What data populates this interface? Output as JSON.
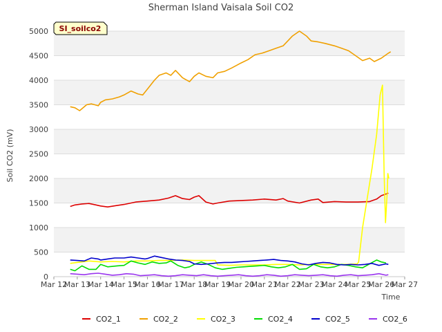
{
  "chart_data": {
    "type": "line",
    "title": "Sherman Island Vaisala Soil CO2",
    "xlabel": "Time",
    "ylabel": "Soil CO2 (mV)",
    "badge": "SI_soilco2",
    "ylim": [
      0,
      5000
    ],
    "yticks": [
      0,
      500,
      1000,
      1500,
      2000,
      2500,
      3000,
      3500,
      4000,
      4500,
      5000
    ],
    "xlim": [
      12,
      27
    ],
    "xticks": [
      {
        "value": 12,
        "label": "Mar 12"
      },
      {
        "value": 13,
        "label": "Mar 13"
      },
      {
        "value": 14,
        "label": "Mar 14"
      },
      {
        "value": 15,
        "label": "Mar 15"
      },
      {
        "value": 16,
        "label": "Mar 16"
      },
      {
        "value": 17,
        "label": "Mar 17"
      },
      {
        "value": 18,
        "label": "Mar 18"
      },
      {
        "value": 19,
        "label": "Mar 19"
      },
      {
        "value": 20,
        "label": "Mar 20"
      },
      {
        "value": 21,
        "label": "Mar 21"
      },
      {
        "value": 22,
        "label": "Mar 22"
      },
      {
        "value": 23,
        "label": "Mar 23"
      },
      {
        "value": 24,
        "label": "Mar 24"
      },
      {
        "value": 25,
        "label": "Mar 25"
      },
      {
        "value": 26,
        "label": "Mar 26"
      },
      {
        "value": 27,
        "label": "Mar 27"
      }
    ],
    "series": [
      {
        "name": "CO2_1",
        "color": "#dd0000",
        "x": [
          12.7,
          12.9,
          13.2,
          13.5,
          13.8,
          14.0,
          14.3,
          14.7,
          15.0,
          15.5,
          16.0,
          16.5,
          16.9,
          17.2,
          17.5,
          17.8,
          18.0,
          18.2,
          18.5,
          18.8,
          19.0,
          19.5,
          20.0,
          20.5,
          21.0,
          21.5,
          21.8,
          22.0,
          22.5,
          23.0,
          23.3,
          23.5,
          24.0,
          24.5,
          25.0,
          25.5,
          25.8,
          26.0,
          26.3
        ],
        "y": [
          1430,
          1460,
          1480,
          1490,
          1460,
          1440,
          1420,
          1450,
          1470,
          1520,
          1540,
          1560,
          1600,
          1650,
          1590,
          1570,
          1620,
          1650,
          1520,
          1480,
          1500,
          1540,
          1550,
          1560,
          1580,
          1560,
          1590,
          1540,
          1500,
          1560,
          1580,
          1510,
          1530,
          1520,
          1520,
          1530,
          1580,
          1650,
          1700
        ]
      },
      {
        "name": "CO2_2",
        "color": "#f0a000",
        "x": [
          12.7,
          12.9,
          13.1,
          13.4,
          13.6,
          13.9,
          14.0,
          14.2,
          14.5,
          14.8,
          15.0,
          15.3,
          15.6,
          15.8,
          16.0,
          16.3,
          16.5,
          16.8,
          17.0,
          17.2,
          17.5,
          17.8,
          18.0,
          18.2,
          18.5,
          18.8,
          19.0,
          19.3,
          19.6,
          19.8,
          20.0,
          20.3,
          20.6,
          20.9,
          21.2,
          21.5,
          21.8,
          22.0,
          22.2,
          22.5,
          22.8,
          23.0,
          23.3,
          23.6,
          24.0,
          24.3,
          24.6,
          24.9,
          25.2,
          25.5,
          25.7,
          26.0,
          26.3,
          26.4
        ],
        "y": [
          3460,
          3440,
          3380,
          3500,
          3520,
          3480,
          3550,
          3600,
          3620,
          3660,
          3700,
          3780,
          3720,
          3700,
          3820,
          4000,
          4100,
          4150,
          4100,
          4200,
          4050,
          3970,
          4080,
          4150,
          4080,
          4050,
          4150,
          4180,
          4250,
          4300,
          4350,
          4420,
          4520,
          4550,
          4600,
          4650,
          4700,
          4800,
          4900,
          5000,
          4900,
          4800,
          4780,
          4750,
          4700,
          4650,
          4600,
          4500,
          4400,
          4450,
          4380,
          4450,
          4550,
          4580
        ]
      },
      {
        "name": "CO2_3",
        "color": "#ffff00",
        "x": [
          12.7,
          13.0,
          13.5,
          14.0,
          14.5,
          15.0,
          15.5,
          16.0,
          16.5,
          17.0,
          17.5,
          18.0,
          18.5,
          18.9,
          19.0,
          19.5,
          20.0,
          20.5,
          21.0,
          21.5,
          22.0,
          22.5,
          23.0,
          23.5,
          24.0,
          24.5,
          24.97,
          25.03,
          25.2,
          25.4,
          25.6,
          25.8,
          25.95,
          26.05,
          26.12,
          26.18,
          26.25,
          26.28,
          26.32
        ],
        "y": [
          270,
          290,
          320,
          300,
          310,
          300,
          320,
          320,
          330,
          330,
          340,
          330,
          330,
          330,
          240,
          230,
          240,
          240,
          240,
          250,
          250,
          240,
          250,
          250,
          250,
          250,
          260,
          300,
          1000,
          1600,
          2200,
          2900,
          3700,
          3900,
          2100,
          1100,
          1700,
          2100,
          2000
        ]
      },
      {
        "name": "CO2_4",
        "color": "#00dd00",
        "x": [
          12.7,
          12.9,
          13.2,
          13.5,
          13.8,
          14.0,
          14.3,
          14.7,
          15.0,
          15.3,
          15.6,
          15.9,
          16.2,
          16.5,
          16.8,
          17.0,
          17.3,
          17.6,
          17.8,
          18.0,
          18.3,
          18.6,
          18.9,
          19.2,
          19.5,
          19.8,
          20.1,
          20.4,
          20.7,
          21.0,
          21.3,
          21.6,
          21.9,
          22.2,
          22.5,
          22.8,
          23.1,
          23.4,
          23.7,
          24.0,
          24.3,
          24.6,
          24.9,
          25.2,
          25.5,
          25.8,
          26.0,
          26.2
        ],
        "y": [
          150,
          120,
          220,
          150,
          150,
          250,
          200,
          220,
          230,
          320,
          280,
          250,
          300,
          270,
          280,
          320,
          230,
          180,
          200,
          250,
          300,
          250,
          180,
          150,
          170,
          190,
          200,
          210,
          220,
          230,
          200,
          180,
          200,
          250,
          150,
          160,
          250,
          200,
          180,
          200,
          250,
          230,
          200,
          180,
          260,
          340,
          300,
          280
        ]
      },
      {
        "name": "CO2_5",
        "color": "#0000cc",
        "x": [
          12.7,
          13.0,
          13.3,
          13.6,
          13.9,
          14.0,
          14.3,
          14.6,
          15.0,
          15.3,
          15.6,
          15.9,
          16.0,
          16.3,
          16.6,
          16.9,
          17.2,
          17.5,
          17.8,
          18.0,
          18.3,
          18.6,
          19.0,
          19.3,
          19.6,
          19.9,
          20.2,
          20.5,
          20.8,
          21.1,
          21.4,
          21.7,
          22.0,
          22.3,
          22.6,
          22.9,
          23.2,
          23.5,
          23.8,
          24.1,
          24.4,
          24.7,
          25.0,
          25.3,
          25.6,
          25.9,
          26.2,
          26.3
        ],
        "y": [
          340,
          330,
          320,
          380,
          360,
          340,
          360,
          380,
          380,
          400,
          380,
          360,
          370,
          420,
          390,
          360,
          340,
          330,
          310,
          260,
          250,
          260,
          280,
          290,
          290,
          300,
          310,
          320,
          330,
          340,
          350,
          330,
          320,
          300,
          260,
          240,
          270,
          290,
          280,
          250,
          240,
          250,
          240,
          250,
          270,
          230,
          260,
          250
        ]
      },
      {
        "name": "CO2_6",
        "color": "#9933ee",
        "x": [
          12.7,
          13.0,
          13.3,
          13.6,
          13.9,
          14.2,
          14.5,
          14.8,
          15.1,
          15.4,
          15.7,
          16.0,
          16.3,
          16.6,
          16.9,
          17.2,
          17.5,
          17.8,
          18.1,
          18.4,
          18.7,
          19.0,
          19.3,
          19.6,
          19.9,
          20.2,
          20.5,
          20.8,
          21.1,
          21.4,
          21.7,
          22.0,
          22.3,
          22.6,
          22.9,
          23.2,
          23.5,
          23.8,
          24.1,
          24.4,
          24.7,
          25.0,
          25.3,
          25.6,
          25.9,
          26.2,
          26.3
        ],
        "y": [
          60,
          50,
          40,
          60,
          70,
          50,
          30,
          40,
          60,
          50,
          20,
          30,
          40,
          20,
          10,
          20,
          40,
          30,
          20,
          40,
          20,
          10,
          20,
          30,
          40,
          20,
          10,
          20,
          40,
          30,
          10,
          20,
          40,
          30,
          20,
          30,
          40,
          20,
          10,
          30,
          40,
          20,
          30,
          40,
          60,
          30,
          40
        ]
      }
    ]
  }
}
